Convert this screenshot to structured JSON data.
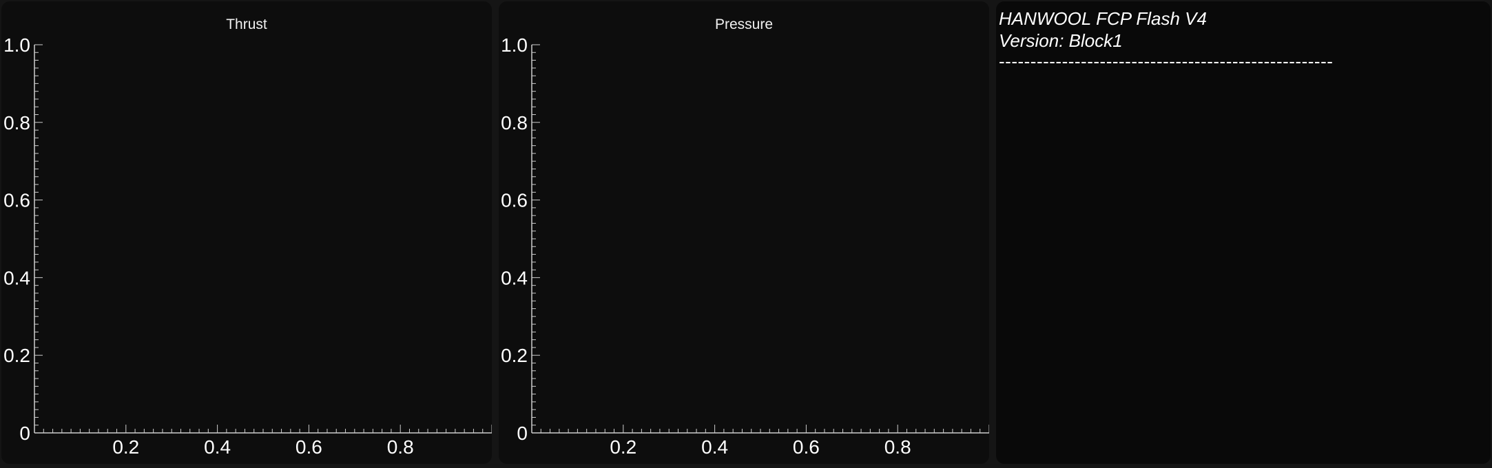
{
  "charts": {
    "thrust": {
      "title": "Thrust"
    },
    "pressure": {
      "title": "Pressure"
    }
  },
  "chart_data": [
    {
      "type": "line",
      "title": "Thrust",
      "xlabel": "",
      "ylabel": "",
      "xlim": [
        0,
        1
      ],
      "ylim": [
        0,
        1
      ],
      "x_ticks": [
        "0.2",
        "0.4",
        "0.6",
        "0.8"
      ],
      "x_tick_values": [
        0.2,
        0.4,
        0.6,
        0.8
      ],
      "y_ticks": [
        "0",
        "0.2",
        "0.4",
        "0.6",
        "0.8",
        "1.0"
      ],
      "y_tick_values": [
        0,
        0.2,
        0.4,
        0.6,
        0.8,
        1.0
      ],
      "series": [],
      "grid": false
    },
    {
      "type": "line",
      "title": "Pressure",
      "xlabel": "",
      "ylabel": "",
      "xlim": [
        0,
        1
      ],
      "ylim": [
        0,
        1
      ],
      "x_ticks": [
        "0.2",
        "0.4",
        "0.6",
        "0.8"
      ],
      "x_tick_values": [
        0.2,
        0.4,
        0.6,
        0.8
      ],
      "y_ticks": [
        "0",
        "0.2",
        "0.4",
        "0.6",
        "0.8",
        "1.0"
      ],
      "y_tick_values": [
        0,
        0.2,
        0.4,
        0.6,
        0.8,
        1.0
      ],
      "series": [],
      "grid": false
    }
  ],
  "console": {
    "lines": [
      "HANWOOL FCP Flash V4",
      "Version: Block1",
      "-----------------------------------------------------"
    ]
  },
  "colors": {
    "background": "#151515",
    "panel": "#0d0d0d",
    "axis": "#cfcfcf",
    "text": "#ffffff"
  }
}
